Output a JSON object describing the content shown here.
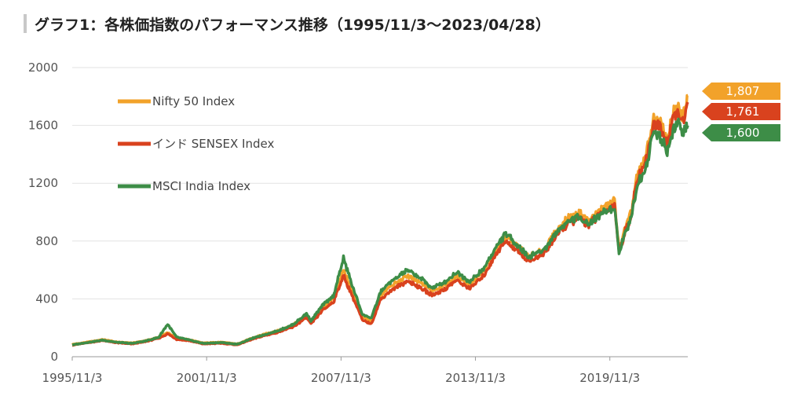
{
  "title": "グラフ1：各株価指数のパフォーマンス推移（1995/11/3～2023/04/28）",
  "chart_data": {
    "type": "line",
    "ylim": [
      0,
      2000
    ],
    "yticks": [
      "0",
      "400",
      "800",
      "1200",
      "1600",
      "2000"
    ],
    "xticks": [
      "1995/11/3",
      "2001/11/3",
      "2007/11/3",
      "2013/11/3",
      "2019/11/3"
    ],
    "grid": true,
    "legend_position": "top-left",
    "series": [
      {
        "name": "Nifty 50 Index",
        "color": "#f2a22a",
        "end_label": "1,807",
        "end_value": 1807,
        "points": [
          [
            1995.84,
            85
          ],
          [
            1996.5,
            100
          ],
          [
            1997.2,
            118
          ],
          [
            1997.8,
            102
          ],
          [
            1998.5,
            95
          ],
          [
            1999.1,
            110
          ],
          [
            1999.7,
            135
          ],
          [
            2000.1,
            165
          ],
          [
            2000.5,
            128
          ],
          [
            2001.0,
            120
          ],
          [
            2001.7,
            95
          ],
          [
            2002.5,
            100
          ],
          [
            2003.2,
            88
          ],
          [
            2003.9,
            130
          ],
          [
            2004.4,
            155
          ],
          [
            2005.0,
            180
          ],
          [
            2005.7,
            220
          ],
          [
            2006.3,
            290
          ],
          [
            2006.5,
            240
          ],
          [
            2007.0,
            340
          ],
          [
            2007.5,
            400
          ],
          [
            2007.95,
            600
          ],
          [
            2008.4,
            430
          ],
          [
            2008.8,
            270
          ],
          [
            2009.2,
            245
          ],
          [
            2009.6,
            420
          ],
          [
            2010.0,
            480
          ],
          [
            2010.8,
            560
          ],
          [
            2011.5,
            500
          ],
          [
            2011.9,
            455
          ],
          [
            2012.5,
            500
          ],
          [
            2013.0,
            560
          ],
          [
            2013.6,
            500
          ],
          [
            2014.2,
            590
          ],
          [
            2014.8,
            760
          ],
          [
            2015.2,
            840
          ],
          [
            2015.9,
            740
          ],
          [
            2016.2,
            690
          ],
          [
            2016.9,
            740
          ],
          [
            2017.5,
            880
          ],
          [
            2018.0,
            960
          ],
          [
            2018.5,
            990
          ],
          [
            2018.9,
            940
          ],
          [
            2019.5,
            1030
          ],
          [
            2019.9,
            1060
          ],
          [
            2020.05,
            1080
          ],
          [
            2020.25,
            740
          ],
          [
            2020.5,
            880
          ],
          [
            2020.8,
            1000
          ],
          [
            2021.0,
            1210
          ],
          [
            2021.5,
            1420
          ],
          [
            2021.8,
            1650
          ],
          [
            2022.1,
            1620
          ],
          [
            2022.4,
            1500
          ],
          [
            2022.7,
            1690
          ],
          [
            2022.9,
            1720
          ],
          [
            2023.1,
            1650
          ],
          [
            2023.2,
            1740
          ],
          [
            2023.32,
            1807
          ]
        ]
      },
      {
        "name": "インド SENSEX Index",
        "color": "#d9421e",
        "end_label": "1,761",
        "end_value": 1761,
        "points": [
          [
            1995.84,
            80
          ],
          [
            1996.5,
            96
          ],
          [
            1997.2,
            112
          ],
          [
            1997.8,
            97
          ],
          [
            1998.5,
            88
          ],
          [
            1999.1,
            104
          ],
          [
            1999.7,
            128
          ],
          [
            2000.1,
            158
          ],
          [
            2000.5,
            120
          ],
          [
            2001.0,
            112
          ],
          [
            2001.7,
            88
          ],
          [
            2002.5,
            93
          ],
          [
            2003.2,
            82
          ],
          [
            2003.9,
            122
          ],
          [
            2004.4,
            145
          ],
          [
            2005.0,
            168
          ],
          [
            2005.7,
            205
          ],
          [
            2006.3,
            272
          ],
          [
            2006.5,
            225
          ],
          [
            2007.0,
            320
          ],
          [
            2007.5,
            378
          ],
          [
            2007.95,
            560
          ],
          [
            2008.4,
            400
          ],
          [
            2008.8,
            250
          ],
          [
            2009.2,
            228
          ],
          [
            2009.6,
            395
          ],
          [
            2010.0,
            450
          ],
          [
            2010.8,
            525
          ],
          [
            2011.5,
            468
          ],
          [
            2011.9,
            425
          ],
          [
            2012.5,
            470
          ],
          [
            2013.0,
            528
          ],
          [
            2013.6,
            472
          ],
          [
            2014.2,
            560
          ],
          [
            2014.8,
            722
          ],
          [
            2015.2,
            800
          ],
          [
            2015.9,
            708
          ],
          [
            2016.2,
            660
          ],
          [
            2016.9,
            710
          ],
          [
            2017.5,
            845
          ],
          [
            2018.0,
            925
          ],
          [
            2018.5,
            960
          ],
          [
            2018.9,
            910
          ],
          [
            2019.5,
            1000
          ],
          [
            2019.9,
            1030
          ],
          [
            2020.05,
            1050
          ],
          [
            2020.25,
            720
          ],
          [
            2020.5,
            855
          ],
          [
            2020.8,
            975
          ],
          [
            2021.0,
            1180
          ],
          [
            2021.5,
            1385
          ],
          [
            2021.8,
            1610
          ],
          [
            2022.1,
            1580
          ],
          [
            2022.4,
            1465
          ],
          [
            2022.7,
            1650
          ],
          [
            2022.9,
            1690
          ],
          [
            2023.1,
            1615
          ],
          [
            2023.2,
            1700
          ],
          [
            2023.32,
            1761
          ]
        ]
      },
      {
        "name": "MSCI India Index",
        "color": "#3d8d47",
        "end_label": "1,600",
        "end_value": 1600,
        "points": [
          [
            1995.84,
            82
          ],
          [
            1996.5,
            98
          ],
          [
            1997.2,
            115
          ],
          [
            1997.8,
            100
          ],
          [
            1998.5,
            92
          ],
          [
            1999.1,
            108
          ],
          [
            1999.7,
            134
          ],
          [
            2000.1,
            225
          ],
          [
            2000.5,
            135
          ],
          [
            2001.0,
            118
          ],
          [
            2001.7,
            92
          ],
          [
            2002.5,
            98
          ],
          [
            2003.2,
            86
          ],
          [
            2003.9,
            128
          ],
          [
            2004.4,
            152
          ],
          [
            2005.0,
            178
          ],
          [
            2005.7,
            222
          ],
          [
            2006.3,
            298
          ],
          [
            2006.5,
            248
          ],
          [
            2007.0,
            352
          ],
          [
            2007.5,
            420
          ],
          [
            2007.95,
            680
          ],
          [
            2008.4,
            465
          ],
          [
            2008.8,
            290
          ],
          [
            2009.2,
            268
          ],
          [
            2009.6,
            448
          ],
          [
            2010.0,
            510
          ],
          [
            2010.8,
            600
          ],
          [
            2011.5,
            530
          ],
          [
            2011.9,
            475
          ],
          [
            2012.5,
            520
          ],
          [
            2013.0,
            585
          ],
          [
            2013.6,
            520
          ],
          [
            2014.2,
            605
          ],
          [
            2014.8,
            770
          ],
          [
            2015.2,
            850
          ],
          [
            2015.9,
            745
          ],
          [
            2016.2,
            690
          ],
          [
            2016.9,
            740
          ],
          [
            2017.5,
            870
          ],
          [
            2018.0,
            945
          ],
          [
            2018.5,
            965
          ],
          [
            2018.9,
            915
          ],
          [
            2019.5,
            995
          ],
          [
            2019.9,
            1020
          ],
          [
            2020.05,
            1040
          ],
          [
            2020.25,
            720
          ],
          [
            2020.5,
            850
          ],
          [
            2020.8,
            960
          ],
          [
            2021.0,
            1150
          ],
          [
            2021.5,
            1340
          ],
          [
            2021.8,
            1570
          ],
          [
            2022.1,
            1520
          ],
          [
            2022.4,
            1430
          ],
          [
            2022.7,
            1580
          ],
          [
            2022.9,
            1620
          ],
          [
            2023.1,
            1520
          ],
          [
            2023.2,
            1570
          ],
          [
            2023.32,
            1600
          ]
        ]
      }
    ]
  }
}
